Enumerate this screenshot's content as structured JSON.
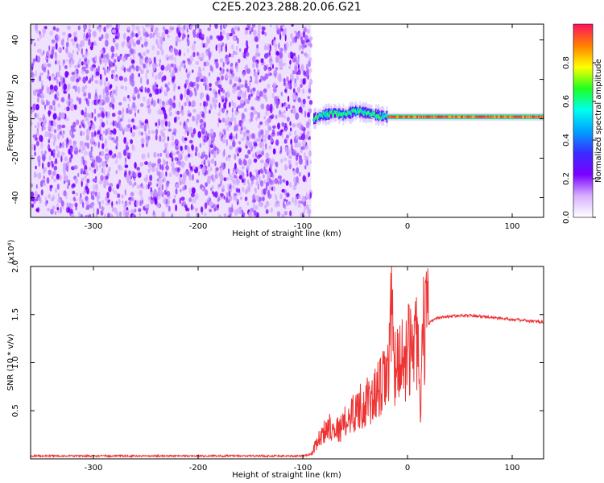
{
  "title": "C2E5.2023.288.20.06.G21",
  "colors": {
    "snr_line": "#ee3333",
    "axes": "#000000",
    "background": "#ffffff",
    "colormap": [
      "#ffffff",
      "#d7b0ff",
      "#7a00ff",
      "#3a2cff",
      "#00a0ff",
      "#00ffee",
      "#20ff20",
      "#ffff00",
      "#ff8000",
      "#ff1060"
    ]
  },
  "chart_data": [
    {
      "type": "heatmap",
      "xlabel": "Height of straight line (km)",
      "ylabel": "Frequency (Hz)",
      "xlim": [
        -360,
        130
      ],
      "ylim": [
        -50,
        48
      ],
      "x_ticks": [
        -300,
        -200,
        -100,
        0,
        100
      ],
      "x_tick_labels": [
        "-300",
        "-200",
        "-100",
        "0",
        "100"
      ],
      "y_ticks": [
        -40,
        -20,
        0,
        20,
        40
      ],
      "y_tick_labels": [
        "-40",
        "-20",
        "0",
        "20",
        "40"
      ],
      "grid": false,
      "noise_region_x": [
        -360,
        -92
      ],
      "signal_track": {
        "x": [
          -90,
          -80,
          -70,
          -60,
          -50,
          -40,
          -30,
          -20,
          -10,
          0,
          20,
          40,
          60,
          80,
          100,
          130
        ],
        "freq": [
          0,
          2,
          3,
          2,
          4,
          3,
          2,
          1,
          1,
          1,
          1,
          1,
          1,
          1,
          1,
          1
        ]
      },
      "colorbar": {
        "label": "Normalized spectral amplitude",
        "range": [
          0.0,
          1.0
        ],
        "ticks": [
          0.0,
          0.2,
          0.4,
          0.6,
          0.8
        ],
        "tick_labels": [
          "0.0",
          "0.2",
          "0.4",
          "0.6",
          "0.8"
        ]
      }
    },
    {
      "type": "line",
      "xlabel": "Height of straight line (km)",
      "ylabel": "SNR (10 * v/v)",
      "y_scale_label": "(x10⁴)",
      "xlim": [
        -360,
        130
      ],
      "ylim": [
        0,
        2.0
      ],
      "x_ticks": [
        -300,
        -200,
        -100,
        0,
        100
      ],
      "x_tick_labels": [
        "-300",
        "-200",
        "-100",
        "0",
        "100"
      ],
      "y_ticks": [
        0.5,
        1.0,
        1.5,
        2.0
      ],
      "y_tick_labels": [
        "0.5",
        "1.0",
        "1.5",
        "2.0"
      ],
      "grid": false,
      "series": [
        {
          "x": [
            -360,
            -300,
            -200,
            -100,
            -92,
            -85,
            -75,
            -65,
            -55,
            -45,
            -35,
            -25,
            -18,
            -14,
            -12,
            -10,
            -5,
            0,
            5,
            10,
            12,
            15,
            20,
            25,
            30,
            40,
            50,
            60,
            70,
            80,
            90,
            100,
            110,
            120,
            130
          ],
          "y": [
            0.03,
            0.03,
            0.03,
            0.03,
            0.05,
            0.2,
            0.35,
            0.3,
            0.45,
            0.55,
            0.6,
            0.75,
            0.9,
            1.8,
            0.9,
            1.0,
            1.05,
            1.1,
            1.2,
            1.3,
            0.35,
            1.35,
            1.4,
            1.45,
            1.47,
            1.48,
            1.49,
            1.49,
            1.48,
            1.47,
            1.46,
            1.45,
            1.44,
            1.43,
            1.42
          ]
        }
      ]
    }
  ]
}
